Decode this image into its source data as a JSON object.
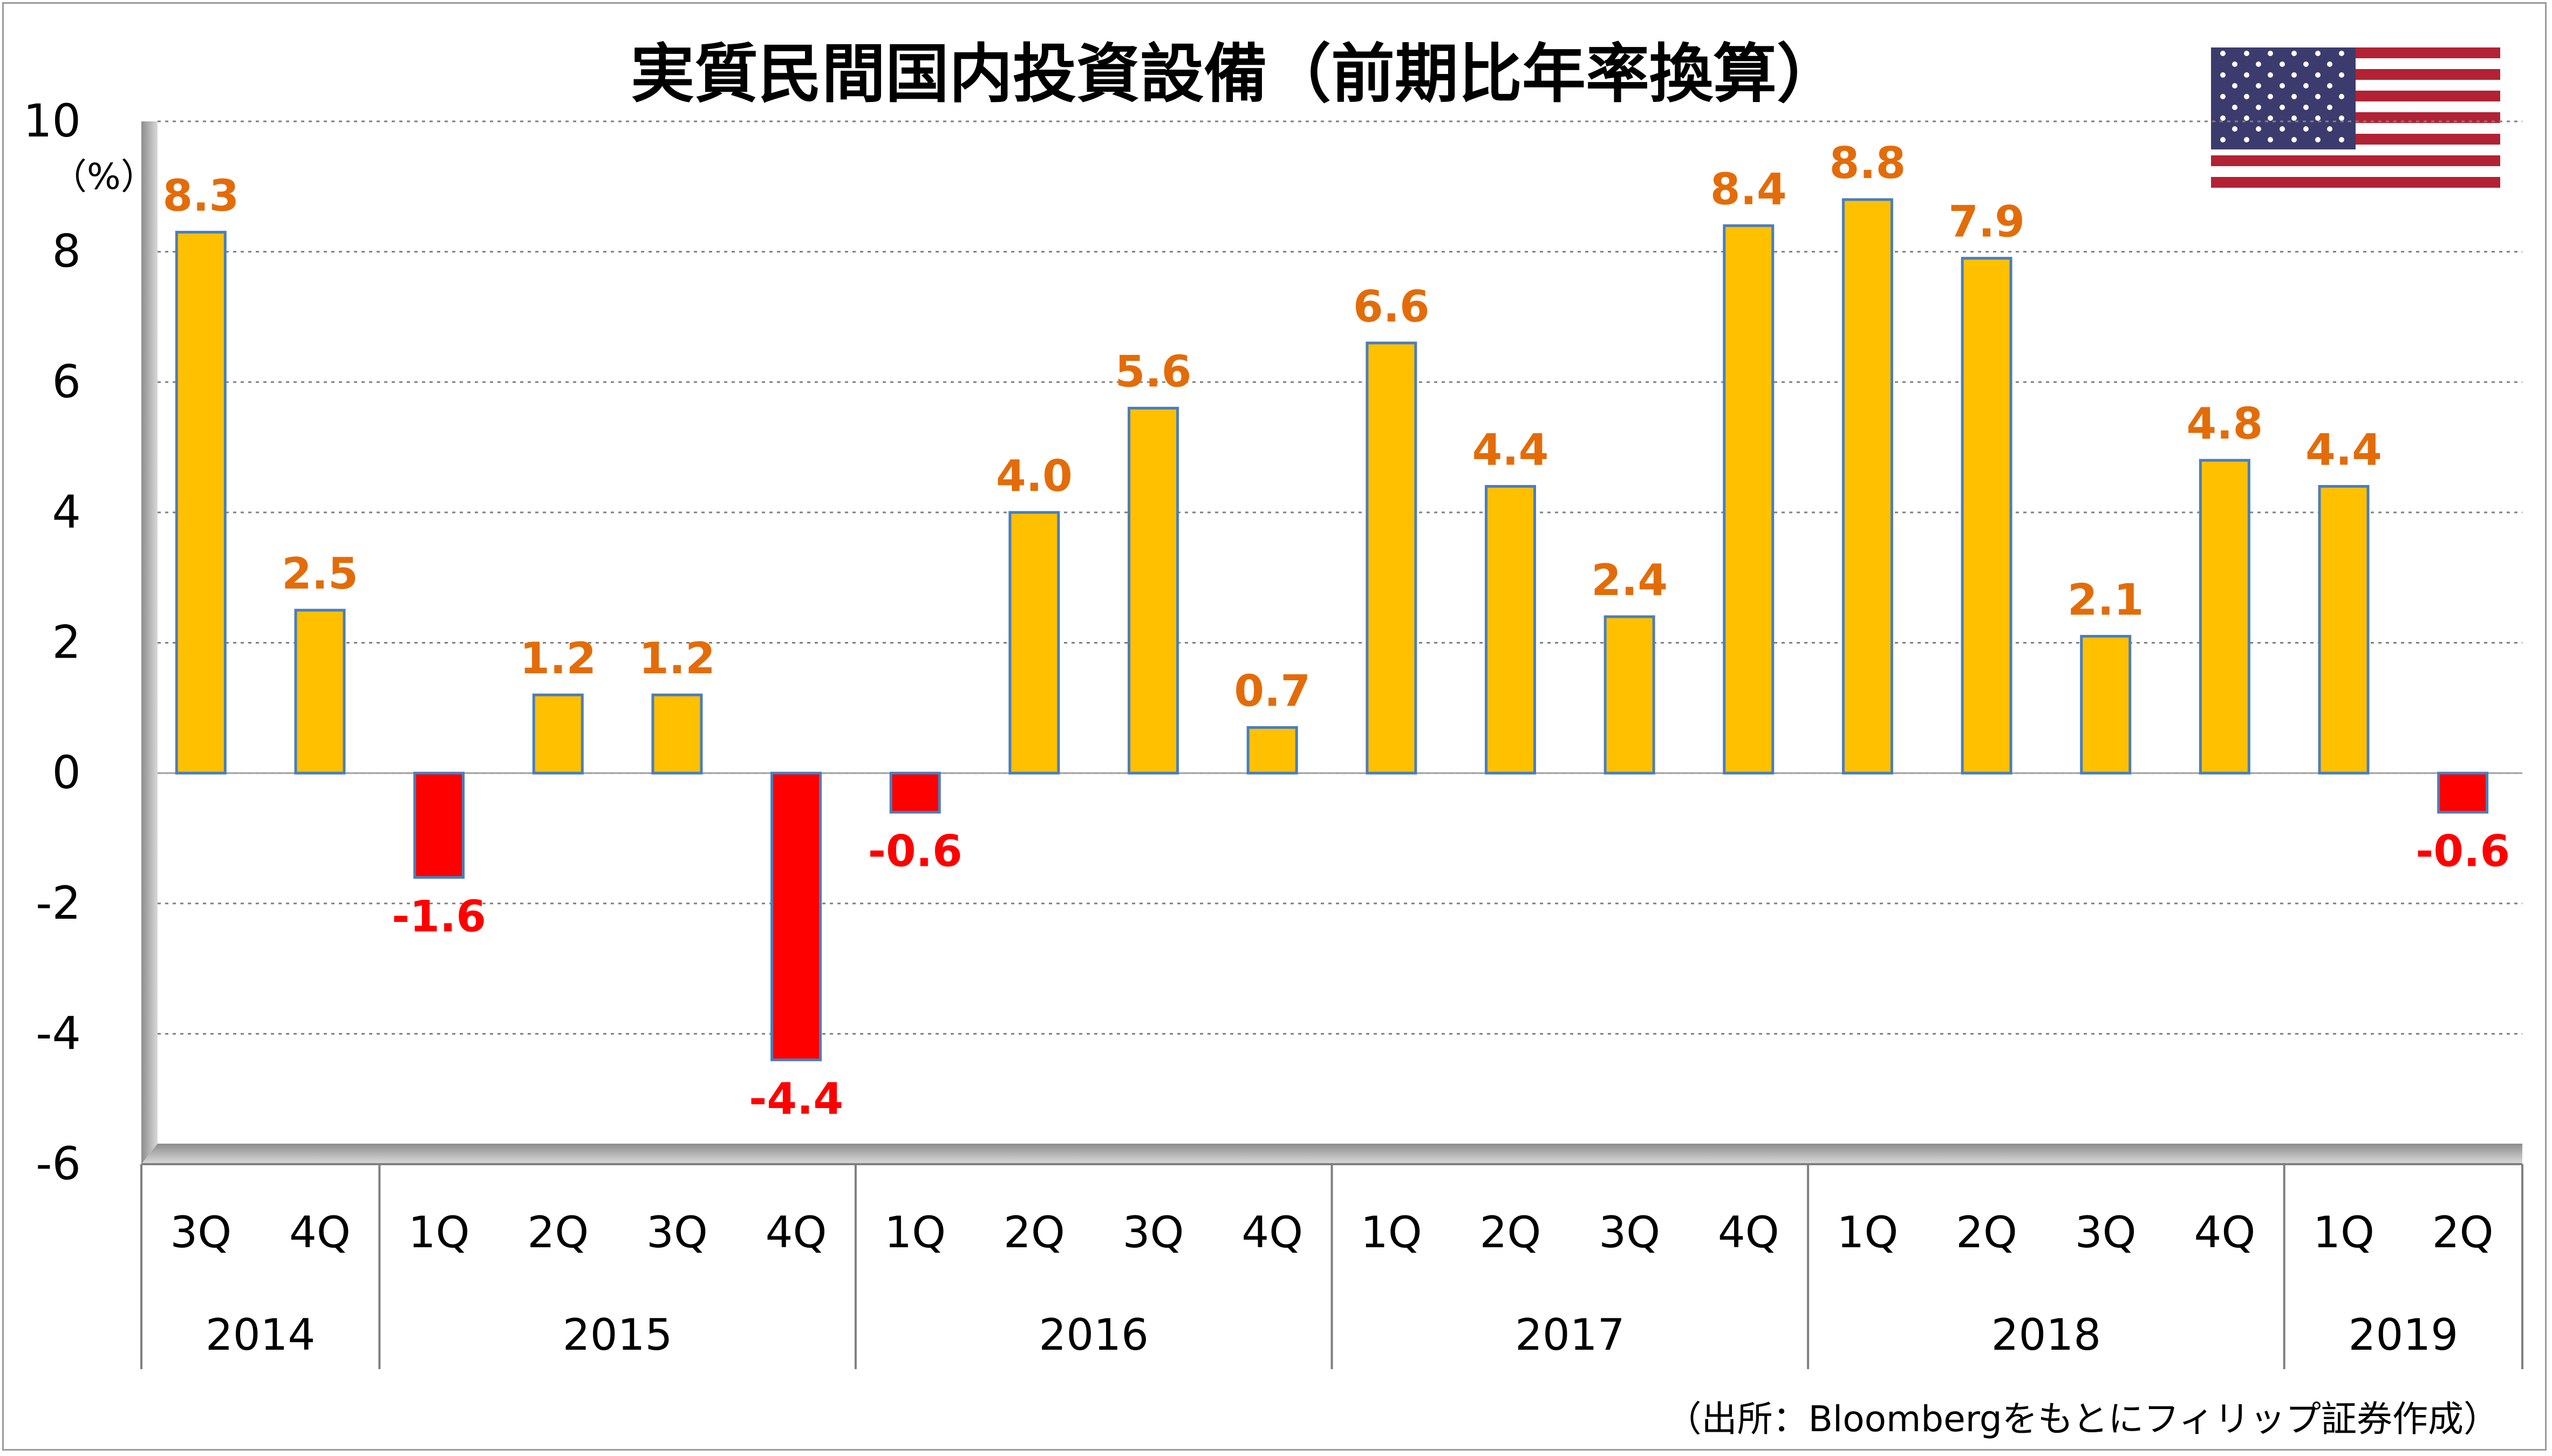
{
  "chart_data": {
    "type": "bar",
    "title": "実質民間国内投資設備（前期比年率換算）",
    "unit_label": "（%）",
    "source": "（出所：Bloombergをもとにフィリップ証券作成）",
    "ylim": [
      -6,
      10
    ],
    "yticks": [
      10,
      8,
      6,
      4,
      2,
      0,
      -2,
      -4,
      -6
    ],
    "grid": true,
    "categories": [
      "3Q",
      "4Q",
      "1Q",
      "2Q",
      "3Q",
      "4Q",
      "1Q",
      "2Q",
      "3Q",
      "4Q",
      "1Q",
      "2Q",
      "3Q",
      "4Q",
      "1Q",
      "2Q",
      "3Q",
      "4Q",
      "1Q",
      "2Q"
    ],
    "years": [
      {
        "label": "2014",
        "count": 2
      },
      {
        "label": "2015",
        "count": 4
      },
      {
        "label": "2016",
        "count": 4
      },
      {
        "label": "2017",
        "count": 4
      },
      {
        "label": "2018",
        "count": 4
      },
      {
        "label": "2019",
        "count": 2
      }
    ],
    "values": [
      8.3,
      2.5,
      -1.6,
      1.2,
      1.2,
      -4.4,
      -0.6,
      4.0,
      5.6,
      0.7,
      6.6,
      4.4,
      2.4,
      8.4,
      8.8,
      7.9,
      2.1,
      4.8,
      4.4,
      -0.6
    ],
    "labels": [
      "8.3",
      "2.5",
      "-1.6",
      "1.2",
      "1.2",
      "-4.4",
      "-0.6",
      "4.0",
      "5.6",
      "0.7",
      "6.6",
      "4.4",
      "2.4",
      "8.4",
      "8.8",
      "7.9",
      "2.1",
      "4.8",
      "4.4",
      "-0.6"
    ],
    "colors": {
      "positive_bar": "#FFC000",
      "negative_bar": "#FF0000",
      "bar_outline": "#4A7EBB",
      "positive_label": "#E36C09",
      "negative_label": "#FF0000",
      "grid": "#808080"
    },
    "flag": "us-flag-icon"
  }
}
